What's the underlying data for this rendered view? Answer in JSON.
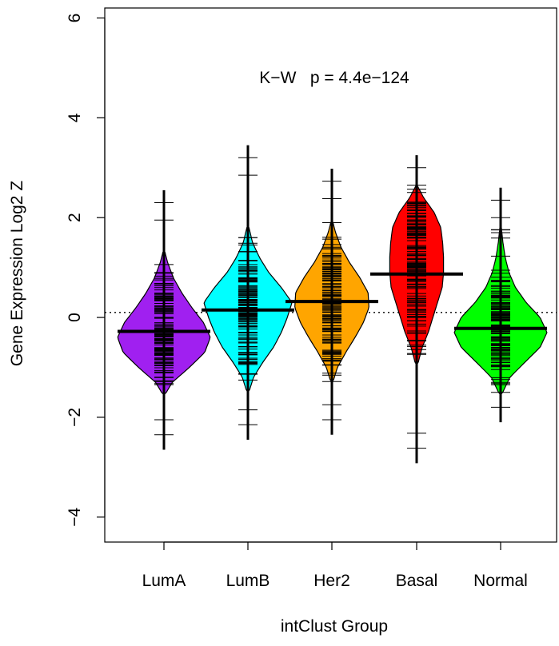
{
  "chart_data": {
    "type": "beanplot",
    "title": "",
    "xlabel": "intClust Group",
    "ylabel": "Gene Expression Log2 Z",
    "ylim": [
      -4.5,
      6.2
    ],
    "yticks": [
      -4,
      -2,
      0,
      2,
      4,
      6
    ],
    "reference_line": 0.1,
    "annotation": "K−W   p = 4.4e−124",
    "groups": [
      {
        "name": "LumA",
        "color": "#a020f0",
        "median": -0.28,
        "min": -2.65,
        "max": 2.55,
        "bean_range": [
          -1.55,
          1.35
        ],
        "density": [
          [
            -1.55,
            0.02
          ],
          [
            -1.3,
            0.18
          ],
          [
            -1.0,
            0.55
          ],
          [
            -0.7,
            0.88
          ],
          [
            -0.4,
            1.0
          ],
          [
            -0.1,
            0.85
          ],
          [
            0.2,
            0.6
          ],
          [
            0.5,
            0.38
          ],
          [
            0.8,
            0.2
          ],
          [
            1.1,
            0.08
          ],
          [
            1.35,
            0.01
          ]
        ]
      },
      {
        "name": "LumB",
        "color": "#00ffff",
        "median": 0.15,
        "min": -2.45,
        "max": 3.45,
        "bean_range": [
          -1.5,
          1.85
        ],
        "density": [
          [
            -1.5,
            0.02
          ],
          [
            -1.2,
            0.12
          ],
          [
            -0.9,
            0.32
          ],
          [
            -0.6,
            0.55
          ],
          [
            -0.3,
            0.72
          ],
          [
            0.0,
            0.85
          ],
          [
            0.3,
            0.95
          ],
          [
            0.6,
            0.72
          ],
          [
            0.9,
            0.45
          ],
          [
            1.2,
            0.25
          ],
          [
            1.5,
            0.1
          ],
          [
            1.85,
            0.01
          ]
        ]
      },
      {
        "name": "Her2",
        "color": "#ffa500",
        "median": 0.32,
        "min": -2.35,
        "max": 2.98,
        "bean_range": [
          -1.3,
          1.95
        ],
        "density": [
          [
            -1.3,
            0.02
          ],
          [
            -1.0,
            0.12
          ],
          [
            -0.7,
            0.3
          ],
          [
            -0.4,
            0.5
          ],
          [
            -0.1,
            0.68
          ],
          [
            0.2,
            0.8
          ],
          [
            0.5,
            0.78
          ],
          [
            0.8,
            0.6
          ],
          [
            1.1,
            0.38
          ],
          [
            1.4,
            0.2
          ],
          [
            1.7,
            0.08
          ],
          [
            1.95,
            0.01
          ]
        ]
      },
      {
        "name": "Basal",
        "color": "#ff0000",
        "median": 0.87,
        "min": -2.92,
        "max": 3.25,
        "bean_range": [
          -0.95,
          2.65
        ],
        "density": [
          [
            -0.95,
            0.02
          ],
          [
            -0.6,
            0.12
          ],
          [
            -0.3,
            0.25
          ],
          [
            0.0,
            0.35
          ],
          [
            0.3,
            0.45
          ],
          [
            0.6,
            0.55
          ],
          [
            0.9,
            0.58
          ],
          [
            1.2,
            0.58
          ],
          [
            1.5,
            0.56
          ],
          [
            1.8,
            0.52
          ],
          [
            2.1,
            0.38
          ],
          [
            2.4,
            0.15
          ],
          [
            2.65,
            0.01
          ]
        ]
      },
      {
        "name": "Normal",
        "color": "#00ff00",
        "median": -0.22,
        "min": -2.1,
        "max": 2.6,
        "bean_range": [
          -1.55,
          1.85
        ],
        "density": [
          [
            -1.55,
            0.02
          ],
          [
            -1.2,
            0.2
          ],
          [
            -0.9,
            0.52
          ],
          [
            -0.6,
            0.85
          ],
          [
            -0.3,
            1.0
          ],
          [
            0.0,
            0.85
          ],
          [
            0.3,
            0.55
          ],
          [
            0.6,
            0.32
          ],
          [
            0.9,
            0.18
          ],
          [
            1.2,
            0.1
          ],
          [
            1.5,
            0.05
          ],
          [
            1.85,
            0.01
          ]
        ]
      }
    ]
  }
}
